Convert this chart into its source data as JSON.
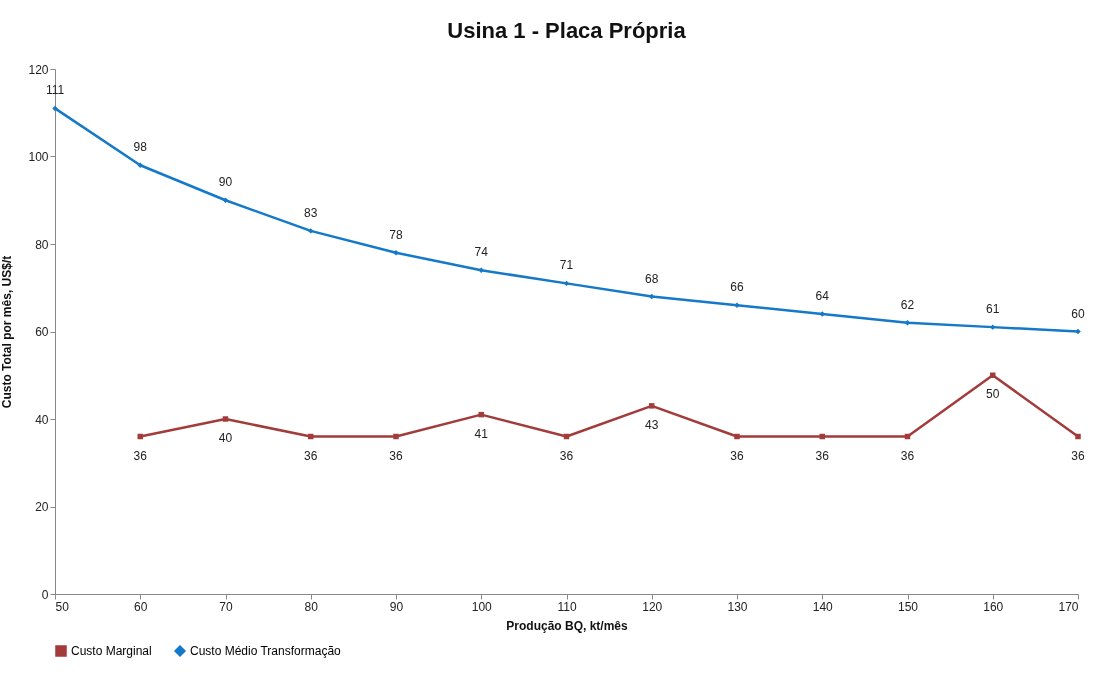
{
  "chart_data": {
    "type": "line",
    "title": "Usina 1 - Placa Própria",
    "xlabel": "Produção BQ, kt/mês",
    "ylabel": "Custo Total por mês, US$/t",
    "x": [
      50,
      60,
      70,
      80,
      90,
      100,
      110,
      120,
      130,
      140,
      150,
      160,
      170
    ],
    "series": [
      {
        "name": "Custo Marginal",
        "color": "#a33b3b",
        "marker": "square",
        "x": [
          60,
          70,
          80,
          90,
          100,
          110,
          120,
          130,
          140,
          150,
          160,
          170
        ],
        "values": [
          36,
          40,
          36,
          36,
          41,
          36,
          43,
          36,
          36,
          36,
          50,
          36
        ]
      },
      {
        "name": "Custo Médio Transformação",
        "color": "#1479c9",
        "marker": "diamond",
        "values": [
          111,
          98,
          90,
          83,
          78,
          74,
          71,
          68,
          66,
          64,
          62,
          61,
          60
        ]
      }
    ],
    "xlim": [
      50,
      170
    ],
    "xticks": [
      50,
      60,
      70,
      80,
      90,
      100,
      110,
      120,
      130,
      140,
      150,
      160,
      170
    ],
    "ylim": [
      0,
      120
    ],
    "yticks": [
      0,
      20,
      40,
      60,
      80,
      100,
      120
    ],
    "data_labels": true,
    "legend": "bottom",
    "grid": false,
    "line_style": "solid"
  }
}
